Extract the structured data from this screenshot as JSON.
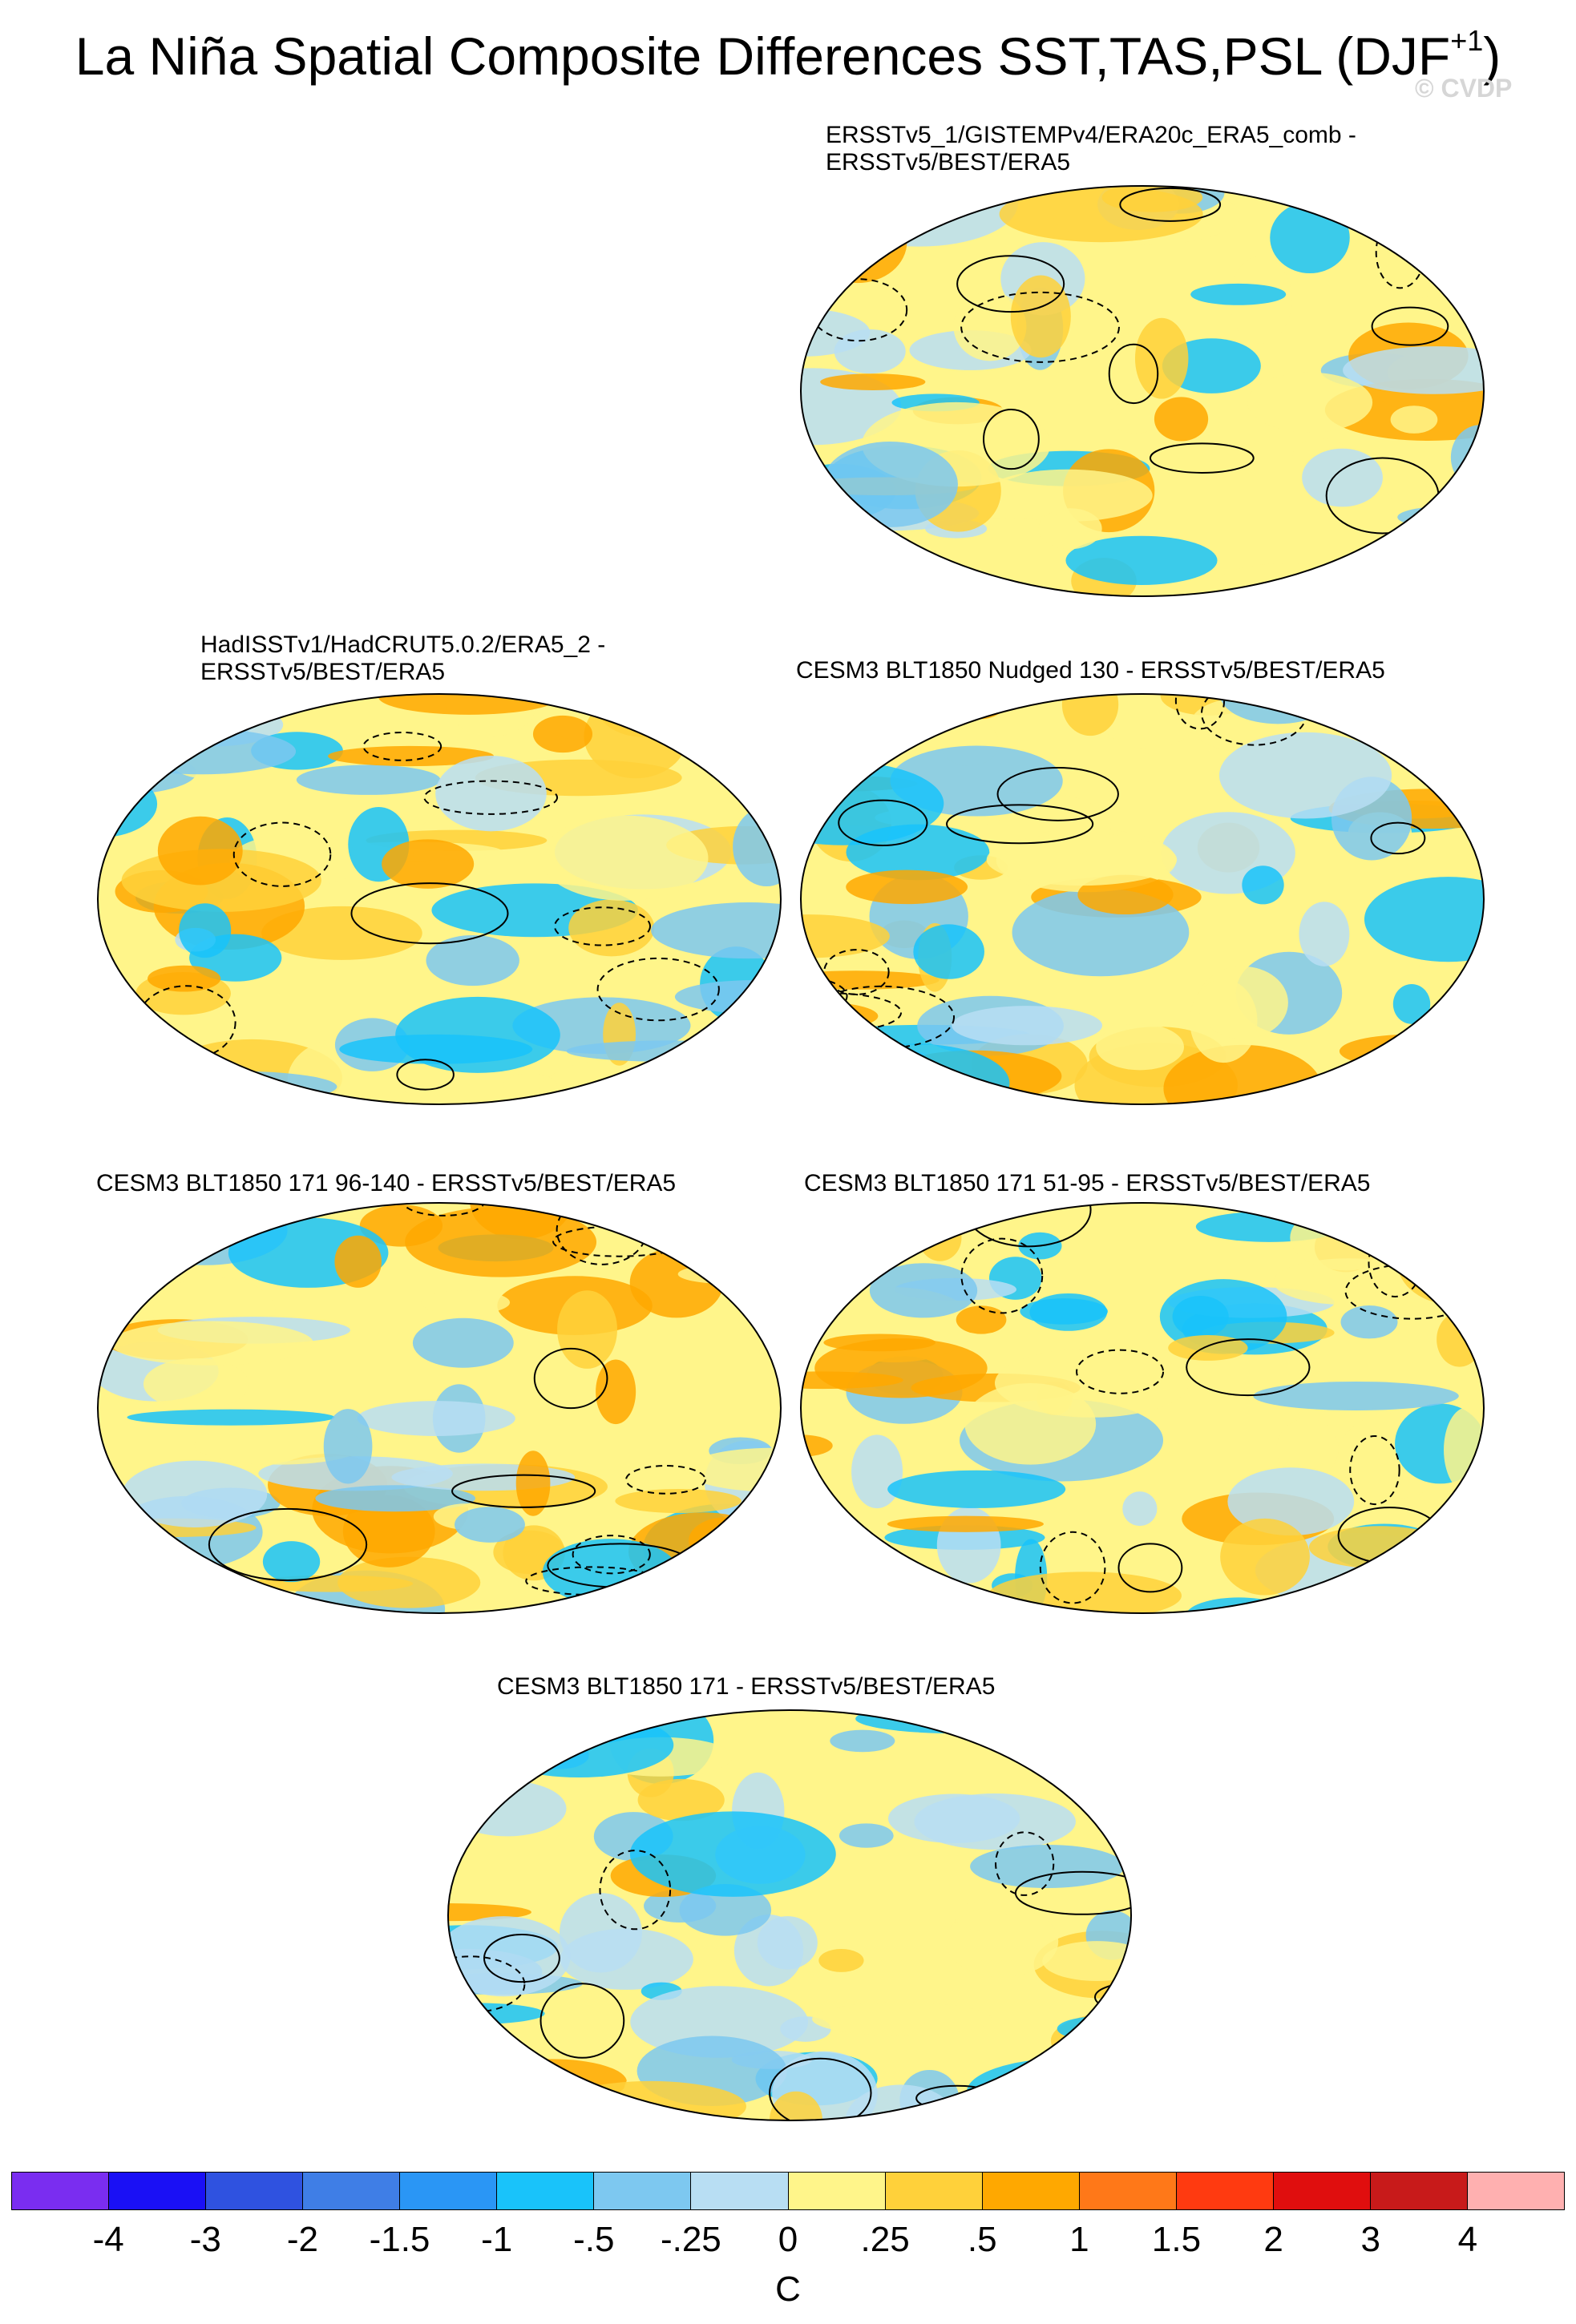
{
  "title": {
    "main": "La Niña Spatial Composite Differences SST,TAS,PSL (DJF",
    "superscript": "+1",
    "close": ")"
  },
  "watermark": "© CVDP",
  "panels": [
    {
      "line1": "ERSSTv5_1/GISTEMPv4/ERA20c_ERA5_comb -",
      "line2": "ERSSTv5/BEST/ERA5"
    },
    {
      "line1": "HadISSTv1/HadCRUT5.0.2/ERA5_2 -",
      "line2": "ERSSTv5/BEST/ERA5"
    },
    {
      "line1": "CESM3 BLT1850 Nudged 130 - ERSSTv5/BEST/ERA5",
      "line2": ""
    },
    {
      "line1": "CESM3 BLT1850 171 96-140 - ERSSTv5/BEST/ERA5",
      "line2": ""
    },
    {
      "line1": "CESM3 BLT1850 171 51-95 - ERSSTv5/BEST/ERA5",
      "line2": ""
    },
    {
      "line1": "CESM3 BLT1850 171 - ERSSTv5/BEST/ERA5",
      "line2": ""
    }
  ],
  "colorbar": {
    "colors": [
      "#7a2df0",
      "#1a10f5",
      "#2f52e0",
      "#3f7ee6",
      "#2a96f5",
      "#19c3fa",
      "#7dc8f0",
      "#b8def3",
      "#fff58a",
      "#ffd13a",
      "#ffa800",
      "#ff7818",
      "#ff3a10",
      "#e00e0e",
      "#c81a1a",
      "#ffb0b0"
    ],
    "labels": [
      "-4",
      "-3",
      "-2",
      "-1.5",
      "-1",
      "-.5",
      "-.25",
      "0",
      ".25",
      ".5",
      "1",
      "1.5",
      "2",
      "3",
      "4"
    ],
    "unit": "C"
  }
}
